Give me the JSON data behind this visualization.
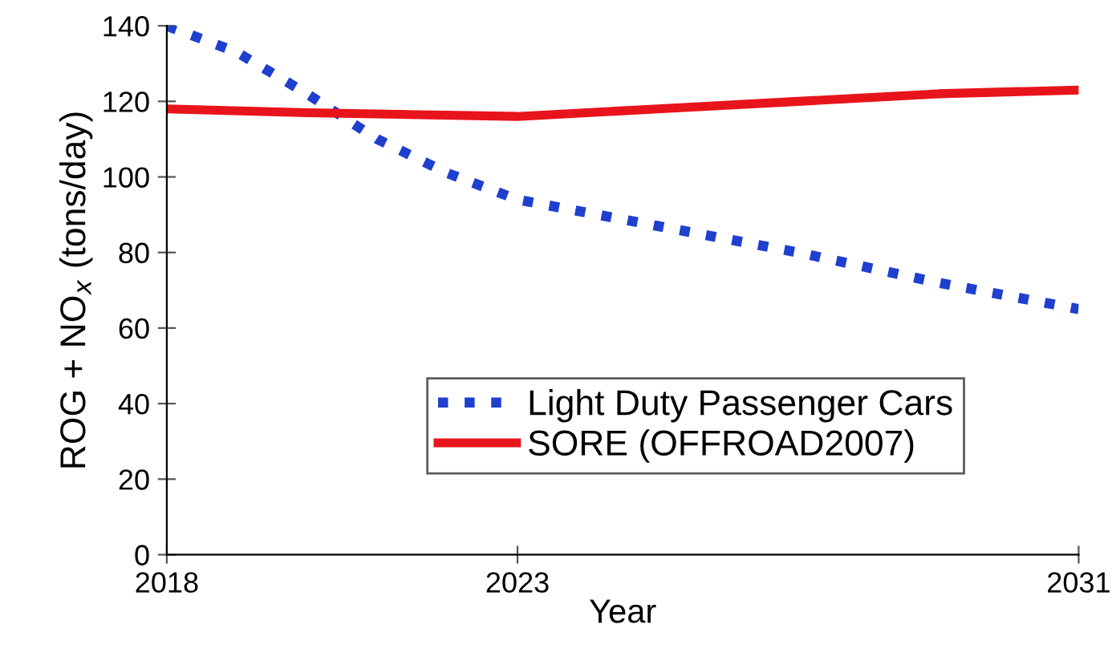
{
  "chart_data": {
    "type": "line",
    "xlabel": "Year",
    "ylabel": "ROG + NO$_{x}$ (tons/day)",
    "xlim": [
      2018,
      2031
    ],
    "xticks": [
      2018,
      2023,
      2031
    ],
    "ylim": [
      0,
      140
    ],
    "yticks": [
      0,
      20,
      40,
      60,
      80,
      100,
      120,
      140
    ],
    "grid": false,
    "legend": "bottom",
    "marker": "none",
    "series": [
      {
        "name": "Light Duty Passenger Cars",
        "color": "#1f3fcf",
        "line_style": "dotted",
        "x": [
          2018,
          2019,
          2020,
          2021,
          2022,
          2023,
          2025,
          2027,
          2029,
          2031
        ],
        "values": [
          140,
          133,
          122,
          110,
          101,
          94,
          87,
          80,
          72,
          65
        ]
      },
      {
        "name": "SORE (OFFROAD2007)",
        "color": "#e8141c",
        "line_style": "solid",
        "x": [
          2018,
          2020,
          2023,
          2025,
          2027,
          2029,
          2031
        ],
        "values": [
          118,
          117,
          116,
          118,
          120,
          122,
          123
        ]
      }
    ]
  }
}
